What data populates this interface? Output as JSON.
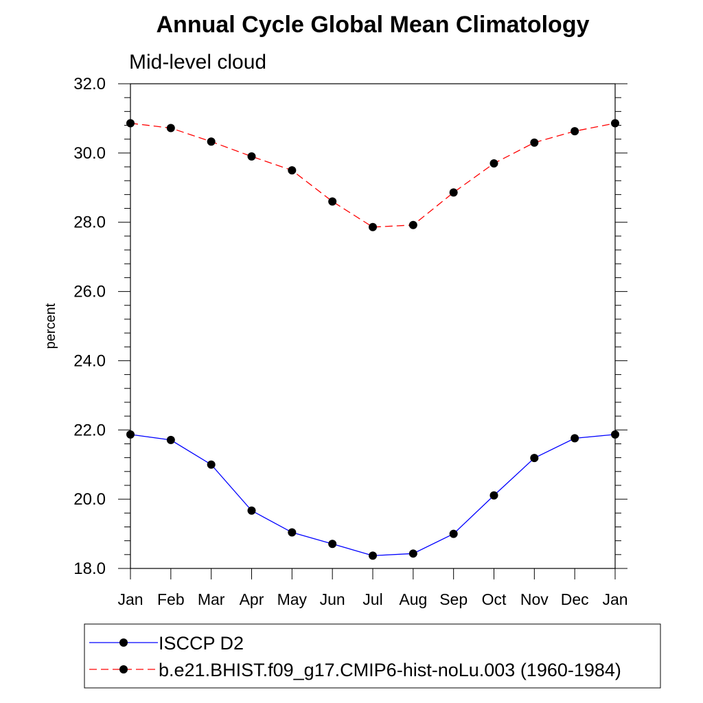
{
  "chart_data": {
    "type": "line",
    "title": "Annual Cycle Global Mean Climatology",
    "subtitle": "Mid-level cloud",
    "xlabel": "",
    "ylabel": "percent",
    "categories": [
      "Jan",
      "Feb",
      "Mar",
      "Apr",
      "May",
      "Jun",
      "Jul",
      "Aug",
      "Sep",
      "Oct",
      "Nov",
      "Dec",
      "Jan"
    ],
    "ylim": [
      18.0,
      32.0
    ],
    "yticks": [
      "18.0",
      "20.0",
      "22.0",
      "24.0",
      "26.0",
      "28.0",
      "30.0",
      "32.0"
    ],
    "grid": false,
    "legend_position": "bottom",
    "series": [
      {
        "name": "ISCCP D2",
        "color": "#0000ff",
        "line_style": "solid",
        "marker": "filled-circle",
        "values": [
          21.87,
          21.71,
          21.0,
          19.67,
          19.04,
          18.71,
          18.37,
          18.43,
          19.0,
          20.11,
          21.19,
          21.76,
          21.87
        ]
      },
      {
        "name": "b.e21.BHIST.f09_g17.CMIP6-hist-noLu.003 (1960-1984)",
        "color": "#ff0000",
        "line_style": "dashed",
        "marker": "filled-circle",
        "values": [
          30.86,
          30.72,
          30.33,
          29.9,
          29.5,
          28.6,
          27.86,
          27.92,
          28.86,
          29.7,
          30.3,
          30.63,
          30.86
        ]
      }
    ]
  }
}
